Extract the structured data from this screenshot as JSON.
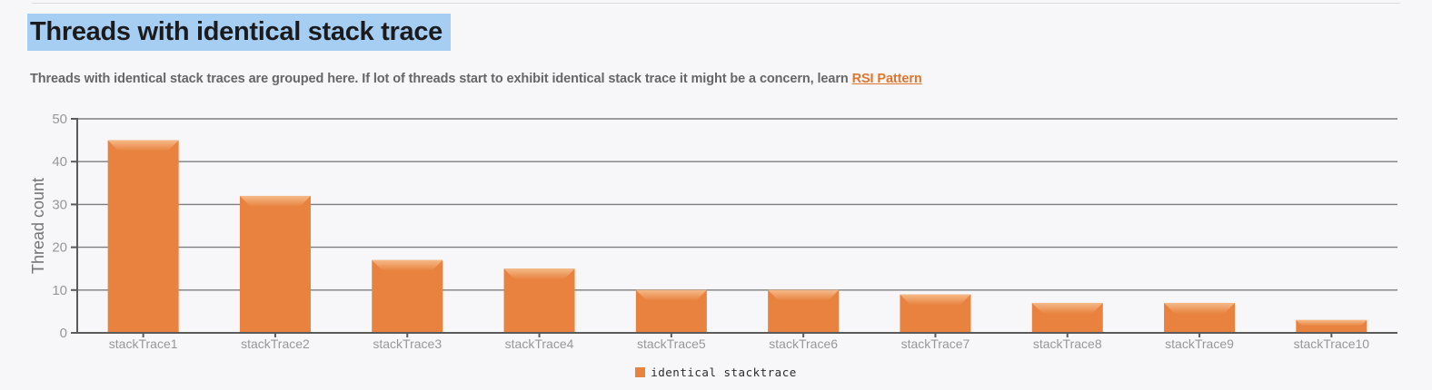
{
  "page": {
    "title": "Threads with identical stack trace",
    "subtitle_prefix": "Threads with identical stack traces are grouped here. If lot of threads start to exhibit identical stack trace it might be a concern, learn ",
    "link_text": "RSI Pattern"
  },
  "colors": {
    "background": "#f7f7f9",
    "bar": "#e8823e",
    "bar_bevel_top": "#f5ba88",
    "title_highlight": "#a6cdf2",
    "title_text": "#1b1b1d",
    "subtitle_text": "#666668",
    "link": "#e0762e",
    "grid": "#7d7d7d",
    "axis": "#5a5a5a",
    "tick_label": "#97979b",
    "axis_title": "#757577"
  },
  "chart_data": {
    "type": "bar",
    "categories": [
      "stackTrace1",
      "stackTrace2",
      "stackTrace3",
      "stackTrace4",
      "stackTrace5",
      "stackTrace6",
      "stackTrace7",
      "stackTrace8",
      "stackTrace9",
      "stackTrace10"
    ],
    "values": [
      45,
      32,
      17,
      15,
      10,
      10,
      9,
      7,
      7,
      3
    ],
    "series": [
      {
        "name": "identical stacktrace",
        "values": [
          45,
          32,
          17,
          15,
          10,
          10,
          9,
          7,
          7,
          3
        ]
      }
    ],
    "title": "",
    "xlabel": "",
    "ylabel": "Thread count",
    "ylim": [
      0,
      50
    ],
    "yticks": [
      0,
      10,
      20,
      30,
      40,
      50
    ],
    "grid": true,
    "legend": {
      "position": "bottom",
      "entries": [
        "identical stacktrace"
      ]
    }
  }
}
